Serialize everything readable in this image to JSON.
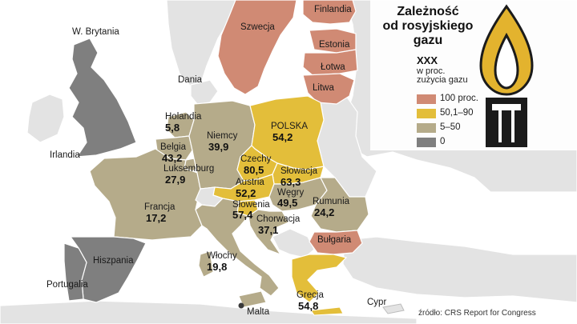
{
  "title": {
    "line1": "Zależność",
    "line2": "od rosyjskiego",
    "line3": "gazu"
  },
  "legend": {
    "heading": "XXX",
    "sub1": "w proc.",
    "sub2": "zużycia gazu",
    "items": [
      {
        "label": "100 proc.",
        "color": "#d08a74"
      },
      {
        "label": "50,1–90",
        "color": "#e3be3a"
      },
      {
        "label": "5–50",
        "color": "#b5ab8a"
      },
      {
        "label": "0",
        "color": "#7f7f7f"
      }
    ]
  },
  "colors": {
    "sea": "#ffffff",
    "land_other": "#e3e3e3",
    "border": "#ffffff",
    "flame": "#e3b32e",
    "icon_dark": "#1b1b1b"
  },
  "places": {
    "gb": "W. Brytania",
    "ireland": "Irlandia",
    "denmark": "Dania",
    "portugal": "Portugalia",
    "malta": "Malta",
    "cyprus": "Cypr"
  },
  "countries": {
    "finland": {
      "name": "Finlandia"
    },
    "sweden": {
      "name": "Szwecja"
    },
    "estonia": {
      "name": "Estonia"
    },
    "latvia": {
      "name": "Łotwa"
    },
    "lithuania": {
      "name": "Litwa"
    },
    "netherlands": {
      "name": "Holandia",
      "value": "5,8"
    },
    "belgium": {
      "name": "Belgia",
      "value": "43,2"
    },
    "luxembourg": {
      "name": "Luksemburg",
      "value": "27,9"
    },
    "germany": {
      "name": "Niemcy",
      "value": "39,9"
    },
    "poland": {
      "name": "POLSKA",
      "value": "54,2"
    },
    "czech": {
      "name": "Czechy",
      "value": "80,5"
    },
    "slovakia": {
      "name": "Słowacja",
      "value": "63,3"
    },
    "austria": {
      "name": "Austria",
      "value": "52,2"
    },
    "hungary": {
      "name": "Węgry",
      "value": "49,5"
    },
    "romania": {
      "name": "Rumunia",
      "value": "24,2"
    },
    "slovenia": {
      "name": "Słowenia",
      "value": "57,4"
    },
    "croatia": {
      "name": "Chorwacja",
      "value": "37,1"
    },
    "france": {
      "name": "Francja",
      "value": "17,2"
    },
    "bulgaria": {
      "name": "Bułgaria"
    },
    "spain": {
      "name": "Hiszpania"
    },
    "italy": {
      "name": "Włochy",
      "value": "19,8"
    },
    "greece": {
      "name": "Grecja",
      "value": "54,8"
    }
  },
  "source": "źródło: CRS Report for Congress"
}
